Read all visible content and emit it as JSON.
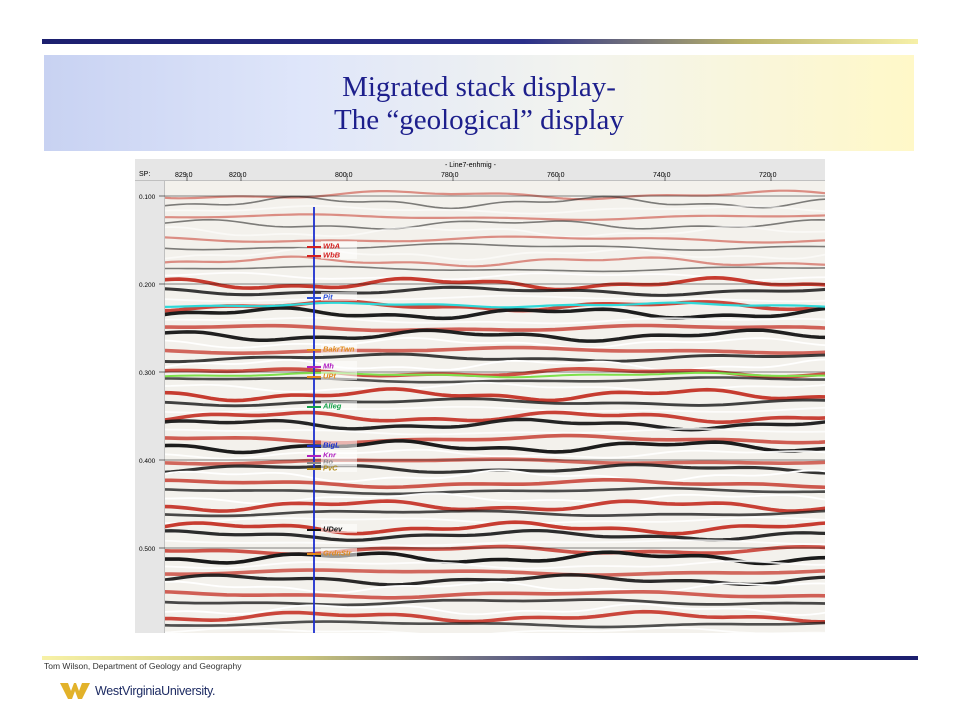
{
  "slide": {
    "title_line1": "Migrated stack display-",
    "title_line2": "The “geological” display",
    "credit": "Tom Wilson, Department of Geology and Geography",
    "logo_text": "WestVirginiaUniversity."
  },
  "seismic": {
    "line_name": "- Line7-enhmig -",
    "sp_label": "SP:",
    "sp_ticks": [
      "829.0",
      "820.0",
      "800.0",
      "780.0",
      "760.0",
      "740.0",
      "720.0"
    ],
    "time_ticks": [
      "0.100",
      "0.200",
      "0.300",
      "0.400",
      "0.500"
    ],
    "horizons": [
      "WbA",
      "WbB",
      "Pit",
      "BakrTwn",
      "Mh",
      "UPt",
      "Alleg",
      "BigL",
      "Knr",
      "Bo",
      "PvC",
      "UDev",
      "GrdnStr"
    ],
    "colors": {
      "wiggle_red": "#c63a2e",
      "wiggle_black": "#1a1a1a",
      "pick_cyan": "#2fd8d8",
      "pick_green": "#7ee04a",
      "well": "#1c2fd0",
      "title": "#1d1f8c"
    }
  }
}
